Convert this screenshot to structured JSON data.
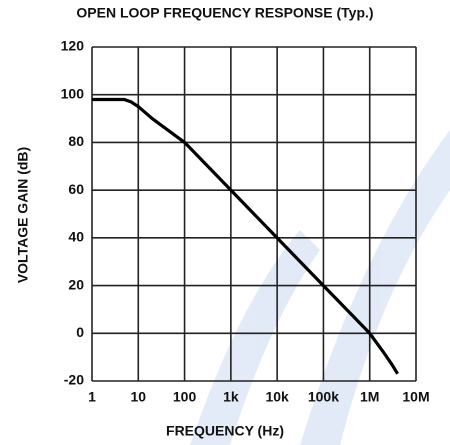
{
  "chart_data": {
    "type": "line",
    "title": "OPEN LOOP FREQUENCY RESPONSE (Typ.)",
    "xlabel": "FREQUENCY (Hz)",
    "ylabel": "VOLTAGE GAIN (dB)",
    "xscale": "log",
    "grid": true,
    "xlim": [
      1,
      10000000
    ],
    "xticks": [
      1,
      10,
      100,
      {
        "value": 1000,
        "label": "1k"
      },
      {
        "value": 10000,
        "label": "10k"
      },
      {
        "value": 100000,
        "label": "100k"
      },
      {
        "value": 1000000,
        "label": "1M"
      },
      {
        "value": 10000000,
        "label": "10M"
      }
    ],
    "ylim": [
      -20,
      120
    ],
    "yticks": [
      -20,
      0,
      20,
      40,
      60,
      80,
      100,
      120
    ],
    "series": [
      {
        "color": "#000000",
        "x": [
          1,
          5,
          7,
          10,
          20,
          100,
          1000,
          10000,
          100000,
          1000000,
          2000000,
          3000000,
          4000000
        ],
        "values": [
          98,
          98,
          97,
          95,
          90,
          80,
          60,
          40,
          20,
          0,
          -8,
          -13,
          -17
        ]
      }
    ]
  }
}
